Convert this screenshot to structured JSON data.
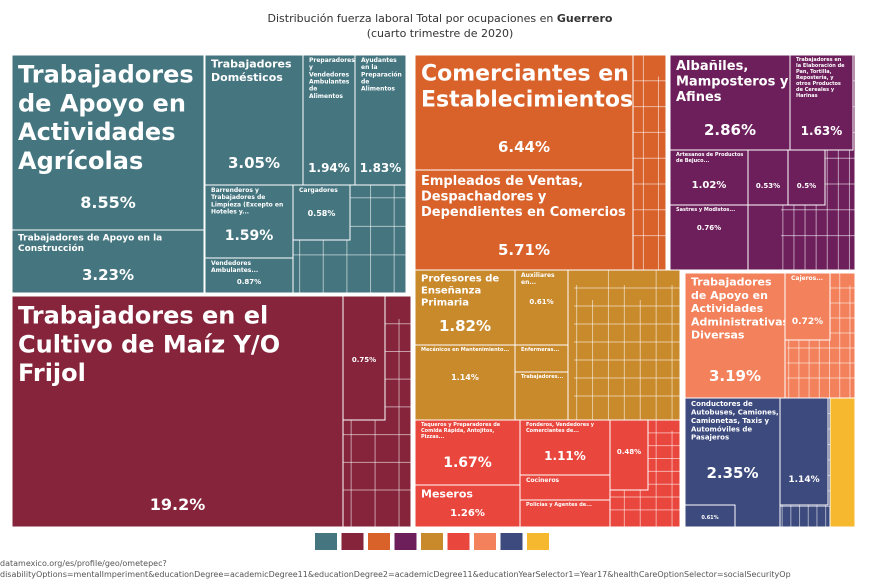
{
  "chart_data": {
    "type": "treemap",
    "title": "Distribución fuerza laboral Total por ocupaciones en",
    "title_emphasis": "Guerrero",
    "subtitle": "(cuarto trimestre de 2020)",
    "source": "datamexico.org/es/profile/geo/ometepec?",
    "source_query": "disabilityOptions=mentalImperiment&educationDegree=academicDegree11&educationDegree2=academicDegree11&educationYearSelector1=Year17&healthCareOptionSelector=socialSecurityOp",
    "series": [
      {
        "color": "#457680",
        "labels": [
          "Trabajadores de Apoyo en Actividades Agrícolas",
          "Trabajadores de Apoyo en la Construcción",
          "Trabajadores Domésticos",
          "Preparadores y Vendedores Ambulantes de Alimentos",
          "Ayudantes en la Preparación de Alimentos",
          "Barrenderos y Trabajadores de Limpieza (Excepto en Hoteles y...",
          "Cargadores",
          "Vendedores Ambulantes..."
        ],
        "values": [
          8.55,
          3.23,
          3.05,
          1.94,
          1.83,
          1.59,
          0.58,
          0.87
        ],
        "value_labels": [
          "8.55%",
          "3.23%",
          "3.05%",
          "1.94%",
          "1.83%",
          "1.59%",
          "0.58%",
          "0.87%"
        ]
      },
      {
        "color": "#85243a",
        "labels": [
          "Trabajadores en el Cultivo de Maíz Y/O Frijol",
          null
        ],
        "values": [
          19.2,
          0.75
        ],
        "value_labels": [
          "19.2%",
          "0.75%"
        ]
      },
      {
        "color": "#d9622b",
        "labels": [
          "Comerciantes en Establecimientos",
          "Empleados de Ventas, Despachadores y Dependientes en Comercios"
        ],
        "values": [
          6.44,
          5.71
        ],
        "value_labels": [
          "6.44%",
          "5.71%"
        ]
      },
      {
        "color": "#6d1f5b",
        "labels": [
          "Albañiles, Mamposteros y Afines",
          "Trabajadores en la Elaboración de Pan, Tortilla, Repostería, y otros Productos de Cereales y Harinas",
          "Artesanos de Productos de Bejuco...",
          null,
          null,
          "Sastres y Modistos..."
        ],
        "values": [
          2.86,
          1.63,
          1.02,
          0.53,
          0.5,
          0.76
        ],
        "value_labels": [
          "2.86%",
          "1.63%",
          "1.02%",
          "0.53%",
          "0.5%",
          "0.76%"
        ]
      },
      {
        "color": "#c98a2c",
        "labels": [
          "Profesores de Enseñanza Primaria",
          "Auxiliares en...",
          "Mecánicos en Mantenimiento...",
          "Enfermeras...",
          "Trabajadores..."
        ],
        "values": [
          1.82,
          0.61,
          1.14,
          0.4,
          0.55
        ],
        "value_labels": [
          "1.82%",
          "0.61%",
          "1.14%",
          null,
          null
        ]
      },
      {
        "color": "#e9473d",
        "labels": [
          "Taqueros y Preparadores de Comida Rápida, Antojitos, Pizzas...",
          "Meseros",
          "Fonderos, Vendedores y Comerciantes de...",
          "Cocineros",
          "Policías y Agentes de...",
          null
        ],
        "values": [
          1.67,
          1.26,
          1.11,
          0.45,
          0.4,
          0.48
        ],
        "value_labels": [
          "1.67%",
          "1.26%",
          "1.11%",
          null,
          null,
          "0.48%"
        ]
      },
      {
        "color": "#f3825c",
        "labels": [
          "Trabajadores de Apoyo en Actividades Administrativas Diversas",
          "Cajeros..."
        ],
        "values": [
          3.19,
          0.72
        ],
        "value_labels": [
          "3.19%",
          "0.72%"
        ]
      },
      {
        "color": "#3c4a7d",
        "labels": [
          "Conductores de Autobuses, Camiones, Camionetas, Taxis y Automóviles de Pasajeros",
          null,
          null
        ],
        "values": [
          2.35,
          1.14,
          0.61
        ],
        "value_labels": [
          "2.35%",
          "1.14%",
          "0.61%"
        ]
      },
      {
        "color": "#f5b82f",
        "labels": [
          null
        ],
        "values": [
          0.3
        ],
        "value_labels": [
          null
        ]
      }
    ]
  }
}
